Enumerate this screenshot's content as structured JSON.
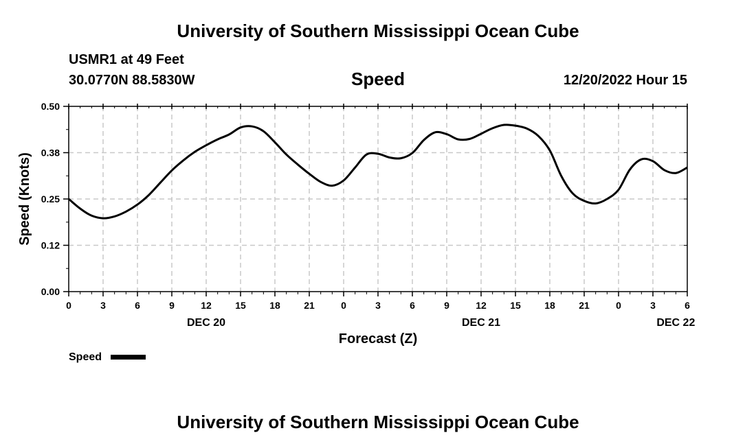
{
  "header": {
    "title": "University of Southern Mississippi Ocean Cube",
    "station": "USMR1 at 49 Feet",
    "coords": "30.0770N  88.5830W",
    "datetime": "12/20/2022 Hour 15"
  },
  "footer": {
    "title": "University of Southern Mississippi Ocean Cube"
  },
  "legend": {
    "label": "Speed"
  },
  "chart_data": {
    "type": "line",
    "title": "Speed",
    "xlabel": "Forecast (Z)",
    "ylabel": "Speed (Knots)",
    "ylim": [
      0,
      0.5
    ],
    "yticks": [
      "0.00",
      "0.12",
      "0.25",
      "0.38",
      "0.50"
    ],
    "ytick_values": [
      0,
      0.125,
      0.25,
      0.375,
      0.5
    ],
    "xlim": [
      0,
      54
    ],
    "x_tick_labels": [
      "0",
      "3",
      "6",
      "9",
      "12",
      "15",
      "18",
      "21",
      "0",
      "3",
      "6",
      "9",
      "12",
      "15",
      "18",
      "21",
      "0",
      "3",
      "6"
    ],
    "date_labels": [
      {
        "label": "DEC 20",
        "at": 12
      },
      {
        "label": "DEC 21",
        "at": 36
      },
      {
        "label": "DEC 22",
        "at": 53
      }
    ],
    "grid": true,
    "series": [
      {
        "name": "Speed",
        "color": "#000000",
        "x": [
          0,
          1,
          2,
          3,
          4,
          5,
          6,
          7,
          8,
          9,
          10,
          11,
          12,
          13,
          14,
          15,
          16,
          17,
          18,
          19,
          20,
          21,
          22,
          23,
          24,
          25,
          26,
          27,
          28,
          29,
          30,
          31,
          32,
          33,
          34,
          35,
          36,
          37,
          38,
          39,
          40,
          41,
          42,
          43,
          44,
          45,
          46,
          47,
          48,
          49,
          50,
          51,
          52,
          53,
          54
        ],
        "values": [
          0.25,
          0.224,
          0.205,
          0.198,
          0.203,
          0.216,
          0.235,
          0.261,
          0.294,
          0.327,
          0.354,
          0.377,
          0.395,
          0.411,
          0.424,
          0.443,
          0.446,
          0.433,
          0.403,
          0.37,
          0.343,
          0.318,
          0.296,
          0.286,
          0.3,
          0.335,
          0.37,
          0.372,
          0.362,
          0.36,
          0.374,
          0.409,
          0.43,
          0.425,
          0.411,
          0.412,
          0.426,
          0.441,
          0.45,
          0.448,
          0.44,
          0.42,
          0.381,
          0.312,
          0.265,
          0.245,
          0.238,
          0.25,
          0.275,
          0.33,
          0.357,
          0.352,
          0.328,
          0.32,
          0.335
        ]
      }
    ]
  }
}
